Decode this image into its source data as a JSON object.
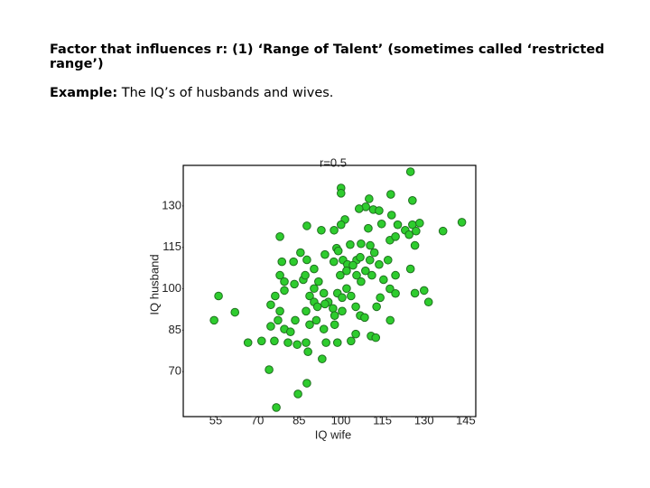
{
  "heading": "Factor that influences r: (1) ‘Range of Talent’ (sometimes called ‘restricted range’)",
  "example": {
    "label": "Example:",
    "text": "The IQ’s of husbands and wives."
  },
  "chart_data": {
    "type": "scatter",
    "title": "r=0.5",
    "x_label": "IQ wife",
    "y_label": "IQ husband",
    "color": "#2ecc2e",
    "edgecolor": "#1f6f1f",
    "xlim": [
      43.3,
      148.6
    ],
    "ylim": [
      53.7,
      144.7
    ],
    "xticks": [
      55,
      70,
      85,
      100,
      115,
      130,
      145
    ],
    "yticks": [
      70,
      85,
      100,
      115,
      130
    ],
    "x": [
      125.1,
      100.1,
      100.1,
      110.2,
      118,
      125.8,
      109,
      111.7,
      106.6,
      118.3,
      120.5,
      114.7,
      125.8,
      143.6,
      136.8,
      87.8,
      101.5,
      100.1,
      97.6,
      93,
      109.9,
      123.2,
      127.1,
      124.6,
      117.7,
      119.7,
      78.1,
      85.5,
      94.3,
      98.5,
      107.3,
      110.6,
      103.4,
      105.7,
      100.8,
      102.4,
      97.5,
      99.1,
      112.1,
      110.5,
      113.8,
      117,
      108.9,
      105.7,
      107.3,
      111.2,
      115.4,
      117.7,
      119.7,
      125.1,
      126.7,
      130,
      131.6,
      126.7,
      87.8,
      83,
      78.8,
      78.1,
      79.7,
      76.4,
      74.8,
      78.1,
      77.4,
      74.8,
      76.1,
      71.5,
      66.6,
      56,
      54.4,
      61.9,
      83.3,
      86.5,
      90.4,
      92,
      88.8,
      90.4,
      87.5,
      88.8,
      91.2,
      93.9,
      95.5,
      97.2,
      97.8,
      98.8,
      100.5,
      102.1,
      103.7,
      105.4,
      107,
      108.6,
      112.9,
      114.2,
      117.8,
      105.4,
      110.9,
      112.6,
      103.7,
      98.8,
      94.7,
      87.5,
      84.3,
      81,
      88.2,
      93.3,
      74.2,
      87.8,
      84.6,
      76.8,
      94.3,
      91.6,
      83.6,
      79.7,
      81.9,
      93.9,
      97.8,
      100.5,
      119.7,
      102.1,
      99.8,
      104.4,
      107,
      90.4,
      87.2,
      79.7,
      128.4,
      113.8
    ],
    "values": [
      142.4,
      136.5,
      134.6,
      132.6,
      134.2,
      132,
      129.7,
      128.7,
      129,
      126.7,
      123.2,
      123.5,
      123.2,
      124.1,
      120.9,
      122.8,
      125.1,
      123.2,
      121.2,
      121.2,
      121.9,
      121.2,
      120.9,
      119.6,
      117.6,
      118.9,
      118.9,
      113.1,
      112.4,
      114.7,
      116.3,
      115.7,
      116,
      110.4,
      110.4,
      108.8,
      109.8,
      113.7,
      113.1,
      110.4,
      108.8,
      110.4,
      106.5,
      104.9,
      102.6,
      104.9,
      103.3,
      100,
      98.3,
      107.2,
      115.7,
      99.4,
      95.2,
      98.4,
      110.5,
      109.8,
      109.8,
      104.9,
      99.4,
      97.4,
      94.2,
      91.9,
      88.6,
      86.4,
      81.1,
      81.1,
      80.5,
      97.4,
      88.6,
      91.5,
      101.7,
      103.3,
      107.2,
      102.6,
      97.4,
      95.2,
      91.9,
      87,
      88.6,
      98.4,
      95.2,
      92.9,
      90.3,
      98.4,
      96.8,
      100.1,
      97.4,
      93.5,
      90.3,
      89.6,
      93.5,
      96.8,
      88.6,
      83.6,
      82.9,
      82.3,
      81.1,
      80.5,
      80.5,
      80.5,
      79.8,
      80.5,
      77.2,
      74.6,
      70.7,
      65.8,
      61.9,
      57,
      94.5,
      93.5,
      88.6,
      85.4,
      84.4,
      85.4,
      87,
      91.9,
      104.9,
      106.5,
      104.9,
      108.5,
      111.4,
      100.1,
      104.9,
      102.6,
      123.8,
      128.3
    ]
  }
}
